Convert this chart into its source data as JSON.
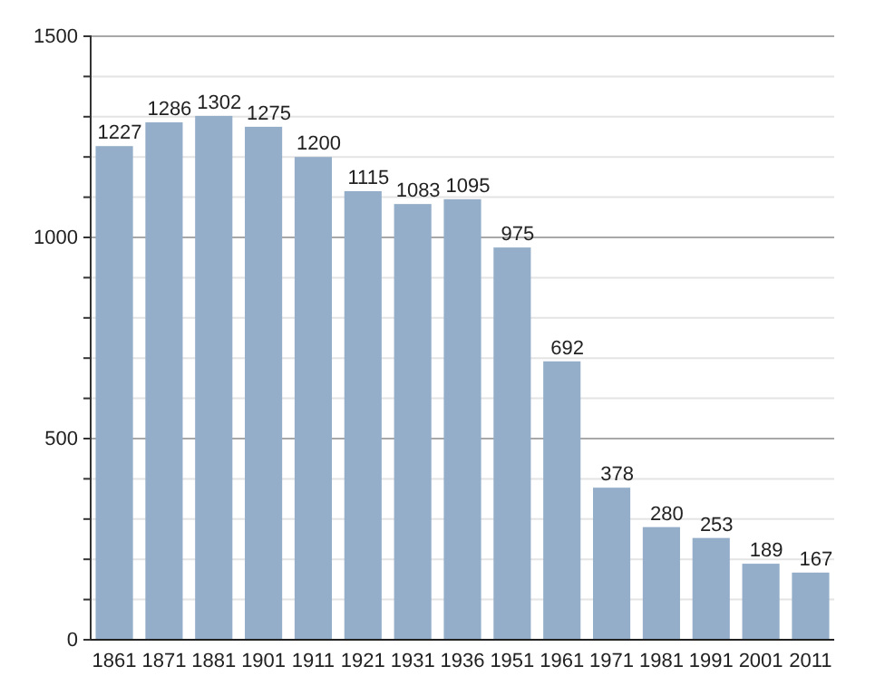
{
  "chart_data": {
    "type": "bar",
    "categories": [
      "1861",
      "1871",
      "1881",
      "1901",
      "1911",
      "1921",
      "1931",
      "1936",
      "1951",
      "1961",
      "1971",
      "1981",
      "1991",
      "2001",
      "2011"
    ],
    "values": [
      1227,
      1286,
      1302,
      1275,
      1200,
      1115,
      1083,
      1095,
      975,
      692,
      378,
      280,
      253,
      189,
      167
    ],
    "color": "#94aec9",
    "ylim": [
      0,
      1500
    ],
    "yticks": [
      0,
      {
        "value": 100,
        "label": null
      },
      {
        "value": 200,
        "label": null
      },
      {
        "value": 300,
        "label": null
      },
      {
        "value": 400,
        "label": null
      },
      500,
      {
        "value": 600,
        "label": null
      },
      {
        "value": 700,
        "label": null
      },
      {
        "value": 800,
        "label": null
      },
      {
        "value": 900,
        "label": null
      },
      1000,
      {
        "value": 1100,
        "label": null
      },
      {
        "value": 1200,
        "label": null
      },
      {
        "value": 1300,
        "label": null
      },
      {
        "value": 1400,
        "label": null
      },
      1500
    ],
    "grid": "y",
    "data_labels": true
  }
}
